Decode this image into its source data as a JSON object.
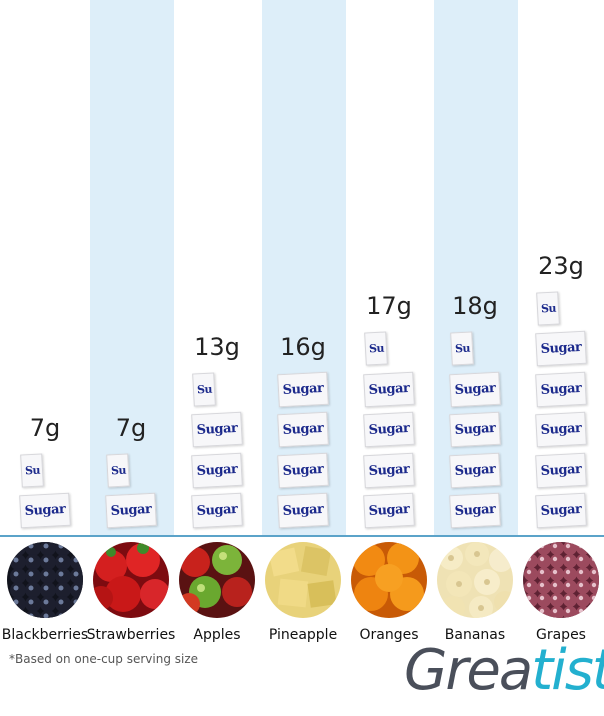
{
  "chart_data": {
    "type": "bar",
    "unit": "g",
    "categories": [
      "Blackberries",
      "Strawberries",
      "Apples",
      "Pineapple",
      "Oranges",
      "Bananas",
      "Grapes"
    ],
    "values": [
      7,
      7,
      13,
      16,
      17,
      18,
      23
    ],
    "value_labels": [
      "7g",
      "7g",
      "13g",
      "16g",
      "17g",
      "18g",
      "23g"
    ],
    "marker_label": "Sugar",
    "marker_partial_label": "Su",
    "footnote": "*Based on one-cup serving size"
  },
  "colors": {
    "band": "#ddeef9",
    "baseline": "#5ba3c9",
    "logo_dark": "#4a4f5a",
    "logo_accent": "#23b0cf"
  },
  "fruit_icons": [
    "blackberries-photo",
    "strawberries-photo",
    "apples-photo",
    "pineapple-photo",
    "oranges-photo",
    "bananas-photo",
    "grapes-photo"
  ],
  "logo": {
    "part1": "Grea",
    "part2": "tist"
  }
}
